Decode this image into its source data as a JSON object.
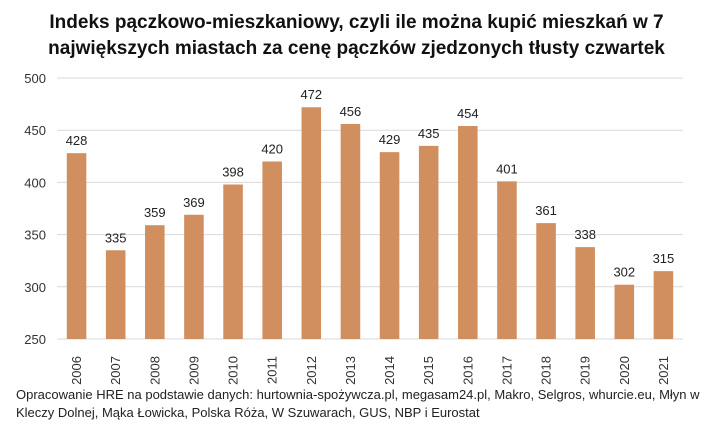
{
  "chart_data": {
    "type": "bar",
    "title_lines": [
      "Indeks pączkowo-mieszkaniowy, czyli ile można kupić mieszkań w 7",
      "największych miastach za cenę pączków zjedzonych tłusty czwartek"
    ],
    "categories": [
      "2006",
      "2007",
      "2008",
      "2009",
      "2010",
      "2011",
      "2012",
      "2013",
      "2014",
      "2015",
      "2016",
      "2017",
      "2018",
      "2019",
      "2020",
      "2021"
    ],
    "values": [
      428,
      335,
      359,
      369,
      398,
      420,
      472,
      456,
      429,
      435,
      454,
      401,
      361,
      338,
      302,
      315
    ],
    "ylim": [
      250,
      500
    ],
    "yticks": [
      250,
      300,
      350,
      400,
      450,
      500
    ],
    "grid": true,
    "bar_color": "#d18f5f",
    "grid_color": "#d9d9d9",
    "source_lines": [
      "Opracowanie HRE na podstawie danych: hurtownia-spożywcza.pl, megasam24.pl, Makro, Selgros, whurcie.eu, Młyn w",
      "Kleczy Dolnej, Mąka Łowicka, Polska Róża, W Szuwarach, GUS, NBP i Eurostat"
    ]
  }
}
